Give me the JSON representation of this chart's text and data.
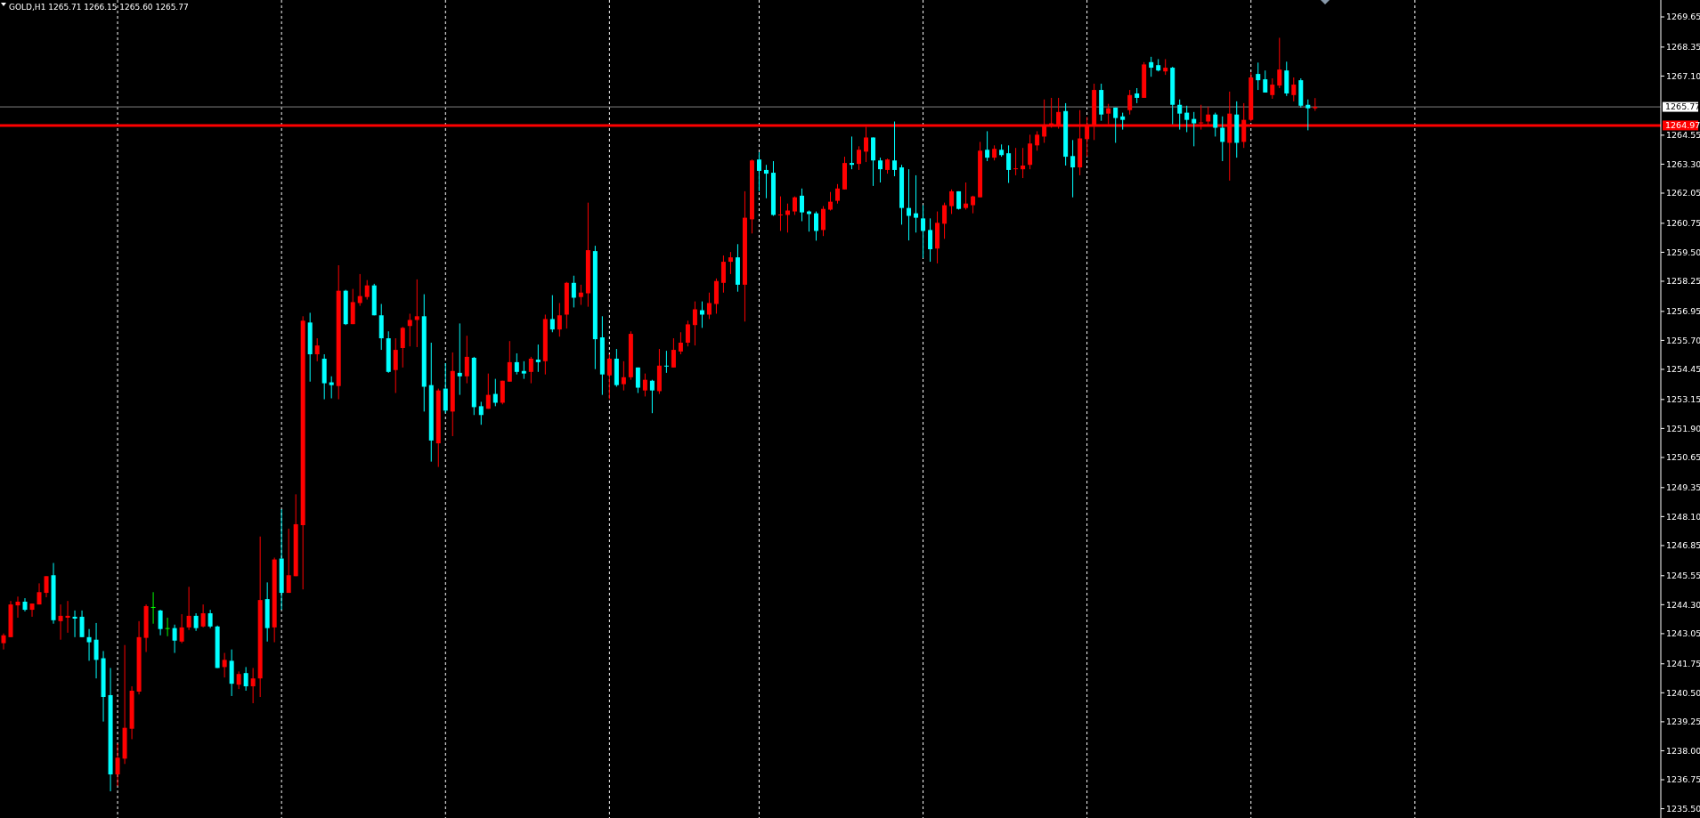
{
  "chart_data": {
    "type": "candlestick",
    "title": "GOLD,H1 1265.71 1266.15 1265.60 1265.77",
    "tick_labels": "y",
    "categories": [
      null,
      null,
      null,
      null,
      null,
      null,
      null,
      null,
      null,
      null,
      null,
      null,
      null,
      null,
      null,
      null,
      null,
      null,
      null,
      null,
      null,
      null,
      null,
      null,
      null,
      null,
      null,
      null,
      null,
      null,
      null,
      null,
      null,
      null,
      null,
      null,
      null,
      null,
      null,
      null,
      null,
      null,
      null,
      null,
      null,
      null,
      null,
      null,
      null,
      null,
      null,
      null,
      null,
      null,
      null,
      null,
      null,
      null,
      null,
      null,
      null,
      null,
      null,
      null,
      null,
      null,
      null,
      null,
      null,
      null,
      null,
      null,
      null,
      null,
      null,
      null,
      null,
      null,
      null,
      null,
      null,
      null,
      null,
      null,
      null,
      null,
      null,
      null,
      null,
      null,
      null,
      null,
      null,
      null,
      null,
      null,
      null,
      null,
      null,
      null,
      null,
      null,
      null,
      null,
      null,
      null,
      null,
      null,
      null,
      null,
      null,
      null,
      null,
      null,
      null,
      null,
      null,
      null,
      null,
      null,
      null,
      null,
      null,
      null,
      null,
      null,
      null,
      null,
      null,
      null,
      null,
      null,
      null,
      null,
      null,
      null,
      null,
      null,
      null,
      null,
      null,
      null,
      null,
      null,
      null,
      null,
      null,
      null,
      null,
      null,
      null,
      null,
      null,
      null,
      null,
      null,
      null,
      null,
      null,
      null,
      null,
      null,
      null,
      null,
      null,
      null,
      null,
      null,
      null,
      null,
      null,
      null,
      null,
      null,
      null,
      null,
      null,
      null,
      null,
      null,
      null,
      null,
      null,
      null,
      null,
      null,
      null,
      null,
      null,
      null,
      null,
      null,
      null,
      null,
      null,
      null,
      null,
      null,
      null,
      null,
      null,
      null,
      null,
      null,
      null,
      null,
      null,
      null,
      null,
      null,
      null,
      null,
      null,
      null,
      null,
      null,
      null,
      null,
      null,
      null,
      null,
      null,
      null,
      null,
      null,
      null,
      null,
      null,
      null,
      null,
      null,
      null,
      null
    ],
    "ohlc": [
      [
        1242.64,
        1243.06,
        1242.37,
        1242.98
      ],
      [
        1242.9,
        1244.46,
        1242.9,
        1244.31
      ],
      [
        1244.27,
        1244.65,
        1243.74,
        1244.43
      ],
      [
        1244.43,
        1244.58,
        1244.01,
        1244.08
      ],
      [
        1244.08,
        1244.35,
        1243.78,
        1244.35
      ],
      [
        1244.31,
        1245.22,
        1244.31,
        1244.84
      ],
      [
        1244.81,
        1245.53,
        1244.62,
        1245.53
      ],
      [
        1245.57,
        1246.1,
        1243.48,
        1243.63
      ],
      [
        1243.59,
        1244.31,
        1242.79,
        1243.82
      ],
      [
        1243.74,
        1244.46,
        1243.09,
        1243.82
      ],
      [
        1243.78,
        1244.05,
        1242.9,
        1243.7
      ],
      [
        1243.78,
        1244.05,
        1242.9,
        1242.9
      ],
      [
        1242.9,
        1243.25,
        1241.88,
        1242.68
      ],
      [
        1242.79,
        1243.51,
        1241.12,
        1241.92
      ],
      [
        1241.99,
        1242.3,
        1239.26,
        1240.32
      ],
      [
        1240.4,
        1241.57,
        1236.25,
        1236.98
      ],
      [
        1236.98,
        1238.31,
        1236.48,
        1237.7
      ],
      [
        1237.66,
        1242.56,
        1237.43,
        1238.99
      ],
      [
        1238.95,
        1240.78,
        1238.5,
        1240.59
      ],
      [
        1240.55,
        1243.59,
        1240.43,
        1242.9
      ],
      [
        1242.87,
        1244.31,
        1242.26,
        1244.24
      ],
      [
        1244.2,
        1244.84,
        1243.48,
        1244.2
      ],
      [
        1244.05,
        1244.08,
        1242.98,
        1243.25
      ],
      [
        1243.29,
        1243.74,
        1242.94,
        1243.29
      ],
      [
        1243.29,
        1243.44,
        1242.22,
        1242.75
      ],
      [
        1242.71,
        1243.89,
        1242.64,
        1243.32
      ],
      [
        1243.32,
        1245.07,
        1243.21,
        1243.82
      ],
      [
        1243.82,
        1243.93,
        1243.17,
        1243.29
      ],
      [
        1243.36,
        1244.31,
        1243.32,
        1243.93
      ],
      [
        1243.93,
        1244.08,
        1243.29,
        1243.36
      ],
      [
        1243.36,
        1243.4,
        1241.57,
        1241.57
      ],
      [
        1241.61,
        1242.22,
        1241.16,
        1241.92
      ],
      [
        1241.88,
        1242.37,
        1240.36,
        1240.89
      ],
      [
        1240.85,
        1241.42,
        1240.66,
        1241.31
      ],
      [
        1241.35,
        1241.61,
        1240.59,
        1240.78
      ],
      [
        1240.78,
        1241.57,
        1240.05,
        1241.12
      ],
      [
        1241.12,
        1247.24,
        1240.32,
        1244.5
      ],
      [
        1244.54,
        1245.26,
        1242.71,
        1243.29
      ],
      [
        1243.32,
        1246.33,
        1242.68,
        1246.25
      ],
      [
        1246.29,
        1248.42,
        1244.08,
        1244.81
      ],
      [
        1244.81,
        1247.58,
        1244.81,
        1245.57
      ],
      [
        1245.53,
        1249.06,
        1245.53,
        1247.77
      ],
      [
        1247.73,
        1256.74,
        1244.96,
        1256.55
      ],
      [
        1256.47,
        1256.89,
        1253.92,
        1255.1
      ],
      [
        1255.1,
        1255.79,
        1254.8,
        1255.48
      ],
      [
        1254.91,
        1255.1,
        1253.16,
        1253.85
      ],
      [
        1253.89,
        1254.15,
        1253.2,
        1253.77
      ],
      [
        1253.73,
        1258.94,
        1253.16,
        1257.84
      ],
      [
        1257.84,
        1257.88,
        1256.36,
        1256.4
      ],
      [
        1256.4,
        1257.92,
        1256.4,
        1257.35
      ],
      [
        1257.31,
        1258.56,
        1257.19,
        1257.61
      ],
      [
        1257.57,
        1258.3,
        1257.46,
        1258.07
      ],
      [
        1258.07,
        1258.14,
        1256.78,
        1256.78
      ],
      [
        1256.78,
        1257.27,
        1255.29,
        1255.79
      ],
      [
        1255.79,
        1256.09,
        1254.3,
        1254.34
      ],
      [
        1254.42,
        1255.79,
        1253.43,
        1255.29
      ],
      [
        1255.37,
        1256.28,
        1254.53,
        1256.24
      ],
      [
        1256.32,
        1256.85,
        1255.44,
        1256.58
      ],
      [
        1256.58,
        1258.33,
        1255.41,
        1256.74
      ],
      [
        1256.74,
        1257.69,
        1252.63,
        1253.7
      ],
      [
        1253.77,
        1255.6,
        1250.47,
        1251.38
      ],
      [
        1251.26,
        1253.62,
        1250.24,
        1253.54
      ],
      [
        1253.62,
        1254.72,
        1252.56,
        1252.67
      ],
      [
        1252.63,
        1255.18,
        1251.57,
        1254.38
      ],
      [
        1254.3,
        1256.43,
        1253.35,
        1254.15
      ],
      [
        1254.15,
        1255.9,
        1253.85,
        1254.99
      ],
      [
        1254.95,
        1254.99,
        1252.48,
        1252.82
      ],
      [
        1252.86,
        1253.05,
        1252.06,
        1252.48
      ],
      [
        1252.75,
        1254.27,
        1252.75,
        1253.35
      ],
      [
        1253.39,
        1254.04,
        1252.86,
        1253.01
      ],
      [
        1253.01,
        1253.96,
        1252.94,
        1253.96
      ],
      [
        1253.92,
        1255.67,
        1253.92,
        1254.76
      ],
      [
        1254.76,
        1255.14,
        1254.23,
        1254.34
      ],
      [
        1254.38,
        1254.8,
        1254.04,
        1254.27
      ],
      [
        1254.34,
        1254.99,
        1253.85,
        1254.91
      ],
      [
        1254.87,
        1255.52,
        1254.34,
        1254.76
      ],
      [
        1254.8,
        1256.81,
        1254.23,
        1256.62
      ],
      [
        1256.62,
        1257.65,
        1256.05,
        1256.17
      ],
      [
        1256.17,
        1257.31,
        1255.86,
        1256.78
      ],
      [
        1256.81,
        1258.22,
        1256.21,
        1258.18
      ],
      [
        1258.18,
        1258.49,
        1257.12,
        1257.54
      ],
      [
        1257.57,
        1258.1,
        1257.23,
        1257.76
      ],
      [
        1257.73,
        1261.64,
        1257.15,
        1259.59
      ],
      [
        1259.55,
        1259.78,
        1254.46,
        1255.75
      ],
      [
        1255.83,
        1256.74,
        1253.35,
        1254.23
      ],
      [
        1254.19,
        1255.1,
        1253.16,
        1254.91
      ],
      [
        1254.91,
        1255.33,
        1253.7,
        1253.77
      ],
      [
        1253.81,
        1254.8,
        1253.54,
        1254.11
      ],
      [
        1254.11,
        1256.09,
        1254.0,
        1255.98
      ],
      [
        1254.53,
        1254.53,
        1253.43,
        1253.66
      ],
      [
        1253.54,
        1254.27,
        1253.28,
        1254.0
      ],
      [
        1253.96,
        1254.0,
        1252.56,
        1253.54
      ],
      [
        1253.51,
        1255.33,
        1253.39,
        1254.61
      ],
      [
        1254.61,
        1255.25,
        1254.3,
        1254.61
      ],
      [
        1254.53,
        1255.79,
        1254.53,
        1255.29
      ],
      [
        1255.22,
        1256.05,
        1255.1,
        1255.6
      ],
      [
        1255.6,
        1256.55,
        1255.44,
        1256.39
      ],
      [
        1256.36,
        1257.38,
        1255.48,
        1257.04
      ],
      [
        1257.0,
        1257.38,
        1256.24,
        1256.81
      ],
      [
        1256.81,
        1257.76,
        1256.62,
        1257.31
      ],
      [
        1257.27,
        1258.37,
        1256.85,
        1258.26
      ],
      [
        1258.18,
        1259.36,
        1257.76,
        1259.09
      ],
      [
        1259.09,
        1259.51,
        1258.56,
        1259.28
      ],
      [
        1259.28,
        1259.85,
        1257.8,
        1258.1
      ],
      [
        1258.1,
        1262.13,
        1256.51,
        1260.99
      ],
      [
        1260.92,
        1263.5,
        1260.31,
        1263.46
      ],
      [
        1263.5,
        1263.81,
        1262.13,
        1263.01
      ],
      [
        1263.05,
        1263.27,
        1261.83,
        1262.89
      ],
      [
        1262.93,
        1263.43,
        1261.07,
        1261.11
      ],
      [
        1261.13,
        1261.91,
        1260.42,
        1261.13
      ],
      [
        1261.11,
        1261.6,
        1260.35,
        1261.3
      ],
      [
        1261.26,
        1261.91,
        1261.11,
        1261.87
      ],
      [
        1261.94,
        1262.25,
        1260.84,
        1261.22
      ],
      [
        1261.26,
        1261.3,
        1260.39,
        1261.15
      ],
      [
        1261.18,
        1261.26,
        1260.0,
        1260.42
      ],
      [
        1260.46,
        1261.49,
        1260.2,
        1261.37
      ],
      [
        1261.34,
        1262.1,
        1261.3,
        1261.68
      ],
      [
        1261.72,
        1262.44,
        1261.6,
        1262.25
      ],
      [
        1262.21,
        1263.62,
        1262.21,
        1263.35
      ],
      [
        1263.35,
        1264.49,
        1263.08,
        1263.27
      ],
      [
        1263.31,
        1264.07,
        1263.05,
        1263.92
      ],
      [
        1263.84,
        1264.91,
        1263.39,
        1264.45
      ],
      [
        1264.45,
        1264.45,
        1262.36,
        1263.46
      ],
      [
        1263.46,
        1263.58,
        1262.51,
        1263.08
      ],
      [
        1263.05,
        1263.54,
        1262.89,
        1263.5
      ],
      [
        1263.46,
        1265.14,
        1262.78,
        1263.05
      ],
      [
        1263.16,
        1263.27,
        1260.69,
        1261.41
      ],
      [
        1261.41,
        1263.08,
        1260.01,
        1261.07
      ],
      [
        1261.18,
        1262.82,
        1260.35,
        1260.99
      ],
      [
        1260.96,
        1261.53,
        1259.25,
        1260.42
      ],
      [
        1260.46,
        1260.96,
        1259.09,
        1259.63
      ],
      [
        1259.66,
        1261.26,
        1259.02,
        1260.77
      ],
      [
        1260.73,
        1261.64,
        1260.08,
        1261.53
      ],
      [
        1261.49,
        1262.21,
        1261.15,
        1262.13
      ],
      [
        1262.13,
        1262.13,
        1261.34,
        1261.37
      ],
      [
        1261.41,
        1262.51,
        1261.34,
        1261.6
      ],
      [
        1261.53,
        1261.94,
        1261.18,
        1261.91
      ],
      [
        1261.87,
        1264.26,
        1261.87,
        1263.88
      ],
      [
        1263.92,
        1264.72,
        1263.43,
        1263.58
      ],
      [
        1263.58,
        1264.11,
        1263.46,
        1263.96
      ],
      [
        1263.92,
        1264.15,
        1263.62,
        1263.69
      ],
      [
        1263.77,
        1264.11,
        1262.49,
        1263.05
      ],
      [
        1263.12,
        1264.0,
        1262.82,
        1263.12
      ],
      [
        1263.08,
        1264.0,
        1262.7,
        1263.24
      ],
      [
        1263.27,
        1264.57,
        1263.08,
        1264.19
      ],
      [
        1264.11,
        1264.72,
        1263.88,
        1264.57
      ],
      [
        1264.49,
        1266.09,
        1264.22,
        1264.98
      ],
      [
        1264.98,
        1266.16,
        1264.87,
        1265.06
      ],
      [
        1264.98,
        1266.16,
        1264.83,
        1265.55
      ],
      [
        1265.59,
        1265.93,
        1263.24,
        1263.62
      ],
      [
        1263.65,
        1264.34,
        1261.87,
        1263.16
      ],
      [
        1263.16,
        1265.63,
        1262.82,
        1264.41
      ],
      [
        1264.38,
        1265.33,
        1263.62,
        1264.95
      ],
      [
        1264.98,
        1266.77,
        1264.34,
        1266.5
      ],
      [
        1266.5,
        1266.77,
        1265.17,
        1265.44
      ],
      [
        1265.48,
        1265.9,
        1265.02,
        1265.71
      ],
      [
        1265.74,
        1265.74,
        1264.22,
        1265.29
      ],
      [
        1265.36,
        1265.52,
        1264.79,
        1265.21
      ],
      [
        1265.63,
        1266.5,
        1265.44,
        1266.28
      ],
      [
        1266.35,
        1266.58,
        1265.93,
        1266.16
      ],
      [
        1266.16,
        1267.7,
        1266.16,
        1267.6
      ],
      [
        1267.7,
        1267.93,
        1267.07,
        1267.46
      ],
      [
        1267.57,
        1267.83,
        1267.3,
        1267.34
      ],
      [
        1267.3,
        1267.83,
        1267.15,
        1267.46
      ],
      [
        1267.46,
        1267.5,
        1265.02,
        1265.86
      ],
      [
        1265.86,
        1266.09,
        1264.79,
        1265.48
      ],
      [
        1265.52,
        1265.82,
        1264.68,
        1265.21
      ],
      [
        1265.25,
        1265.55,
        1264.07,
        1265.06
      ],
      [
        1265.1,
        1265.86,
        1264.79,
        1265.1
      ],
      [
        1265.14,
        1265.78,
        1264.98,
        1265.44
      ],
      [
        1265.44,
        1265.52,
        1264.49,
        1264.87
      ],
      [
        1264.87,
        1265.36,
        1263.43,
        1264.26
      ],
      [
        1264.22,
        1266.43,
        1262.59,
        1265.48
      ],
      [
        1265.44,
        1266.01,
        1263.58,
        1264.22
      ],
      [
        1264.26,
        1265.93,
        1264.0,
        1265.21
      ],
      [
        1265.21,
        1267.26,
        1265.14,
        1267.04
      ],
      [
        1267.19,
        1267.68,
        1266.5,
        1266.92
      ],
      [
        1266.96,
        1267.34,
        1266.39,
        1266.39
      ],
      [
        1266.28,
        1267.0,
        1266.12,
        1266.73
      ],
      [
        1266.69,
        1268.75,
        1266.58,
        1267.38
      ],
      [
        1267.34,
        1267.72,
        1266.24,
        1266.35
      ],
      [
        1266.28,
        1267.04,
        1266.01,
        1266.73
      ],
      [
        1266.92,
        1267.0,
        1265.74,
        1265.82
      ],
      [
        1265.86,
        1266.09,
        1264.76,
        1265.71
      ],
      [
        1265.71,
        1266.15,
        1265.6,
        1265.77
      ],
      null,
      null,
      null,
      null,
      null,
      null,
      null,
      null,
      null,
      null,
      null,
      null,
      null,
      null,
      null,
      null,
      null,
      null,
      null,
      null,
      null,
      null,
      null,
      null,
      null,
      null,
      null,
      null,
      null,
      null,
      null,
      null,
      null,
      null,
      null,
      null,
      null,
      null,
      null,
      null,
      null,
      null,
      null,
      null,
      null,
      null,
      null,
      null
    ],
    "colors": [
      "#ff0000",
      "#ff0000",
      "#ff0000",
      "#00ffff",
      "#ff0000",
      "#ff0000",
      "#ff0000",
      "#00ffff",
      "#ff0000",
      "#ff0000",
      "#00ffff",
      "#00ffff",
      "#00ffff",
      "#00ffff",
      "#00ffff",
      "#00ffff",
      "#ff0000",
      "#ff0000",
      "#ff0000",
      "#ff0000",
      "#ff0000",
      "#00ff00",
      "#00ffff",
      "#00ff00",
      "#00ffff",
      "#ff0000",
      "#ff0000",
      "#00ffff",
      "#ff0000",
      "#00ffff",
      "#00ffff",
      "#ff0000",
      "#00ffff",
      "#ff0000",
      "#00ffff",
      "#ff0000",
      "#ff0000",
      "#00ffff",
      "#ff0000",
      "#00ffff",
      "#ff0000",
      "#ff0000",
      "#ff0000",
      "#00ffff",
      "#ff0000",
      "#00ffff",
      "#00ffff",
      "#ff0000",
      "#00ffff",
      "#ff0000",
      "#ff0000",
      "#ff0000",
      "#00ffff",
      "#00ffff",
      "#00ffff",
      "#ff0000",
      "#ff0000",
      "#ff0000",
      "#ff0000",
      "#00ffff",
      "#00ffff",
      "#ff0000",
      "#00ffff",
      "#ff0000",
      "#00ffff",
      "#ff0000",
      "#00ffff",
      "#00ffff",
      "#ff0000",
      "#00ffff",
      "#ff0000",
      "#ff0000",
      "#00ffff",
      "#00ffff",
      "#ff0000",
      "#00ffff",
      "#ff0000",
      "#00ffff",
      "#ff0000",
      "#ff0000",
      "#00ffff",
      "#ff0000",
      "#ff0000",
      "#00ffff",
      "#00ffff",
      "#ff0000",
      "#00ffff",
      "#ff0000",
      "#ff0000",
      "#00ffff",
      "#ff0000",
      "#00ffff",
      "#ff0000",
      "#00ffff",
      "#ff0000",
      "#ff0000",
      "#ff0000",
      "#ff0000",
      "#00ffff",
      "#ff0000",
      "#ff0000",
      "#ff0000",
      "#ff0000",
      "#00ffff",
      "#ff0000",
      "#ff0000",
      "#00ffff",
      "#00ffff",
      "#00ffff",
      "#ff0000",
      "#ff0000",
      "#ff0000",
      "#00ffff",
      "#00ffff",
      "#00ffff",
      "#ff0000",
      "#ff0000",
      "#ff0000",
      "#ff0000",
      "#00ffff",
      "#ff0000",
      "#ff0000",
      "#00ffff",
      "#00ffff",
      "#ff0000",
      "#00ffff",
      "#00ffff",
      "#00ffff",
      "#00ffff",
      "#00ffff",
      "#00ffff",
      "#ff0000",
      "#ff0000",
      "#ff0000",
      "#00ffff",
      "#ff0000",
      "#ff0000",
      "#ff0000",
      "#00ffff",
      "#ff0000",
      "#00ffff",
      "#00ffff",
      "#ff0000",
      "#ff0000",
      "#ff0000",
      "#ff0000",
      "#ff0000",
      "#ff0000",
      "#ff0000",
      "#00ffff",
      "#00ffff",
      "#ff0000",
      "#ff0000",
      "#ff0000",
      "#00ffff",
      "#ff0000",
      "#00ffff",
      "#00ffff",
      "#ff0000",
      "#00ffff",
      "#ff0000",
      "#00ffff",
      "#00ffff",
      "#ff0000",
      "#00ffff",
      "#00ffff",
      "#00ffff",
      "#00ffff",
      "#ff0000",
      "#ff0000",
      "#00ffff",
      "#00ffff",
      "#ff0000",
      "#00ffff",
      "#ff0000",
      "#ff0000",
      "#00ffff",
      "#00ffff",
      "#ff0000",
      "#ff0000",
      "#00ffff",
      "#ff0000",
      "#00ffff",
      "#00ffff",
      "#ff0000",
      null,
      null,
      null,
      null,
      null,
      null,
      null,
      null,
      null,
      null,
      null,
      null,
      null,
      null,
      null,
      null,
      null,
      null,
      null,
      null,
      null,
      null,
      null,
      null,
      null,
      null,
      null,
      null,
      null,
      null,
      null,
      null,
      null,
      null,
      null,
      null,
      null,
      null,
      null,
      null,
      null,
      null,
      null,
      null,
      null,
      null,
      null,
      null
    ],
    "ylim": [
      1235.1,
      1270.38
    ],
    "yticks": [
      1269.65,
      1268.35,
      {
        "value": 1267.1,
        "label": "1267.10"
      },
      1264.55,
      {
        "value": 1263.3,
        "label": "1263.30"
      },
      1262.05,
      1260.75,
      {
        "value": 1259.5,
        "label": "1259.50"
      },
      1258.25,
      1256.95,
      {
        "value": 1255.7,
        "label": "1255.70"
      },
      1254.45,
      1253.15,
      {
        "value": 1251.9,
        "label": "1251.90"
      },
      1250.65,
      1249.35,
      {
        "value": 1248.1,
        "label": "1248.10"
      },
      1246.85,
      1245.55,
      {
        "value": 1244.3,
        "label": "1244.30"
      },
      1243.05,
      1241.75,
      {
        "value": 1240.5,
        "label": "1240.50"
      },
      1239.25,
      {
        "value": 1238,
        "label": "1238.00"
      },
      1236.75,
      {
        "value": 1235.5,
        "label": "1235.50"
      }
    ],
    "ref_lines": [
      {
        "axis": "y",
        "value": 1264.97,
        "label": "1264.97",
        "color": "#ff0000"
      },
      {
        "axis": "y",
        "value": 1265.77,
        "label": "1265.77",
        "color": "#808080"
      }
    ]
  }
}
